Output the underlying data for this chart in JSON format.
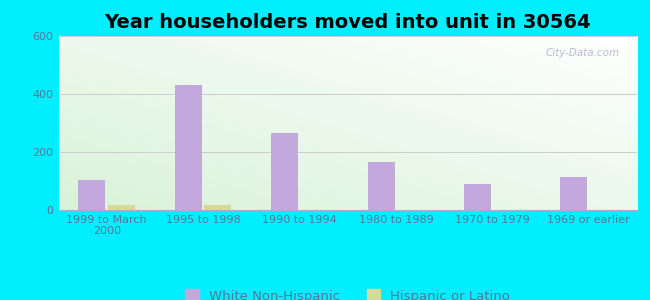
{
  "title": "Year householders moved into unit in 30564",
  "categories": [
    "1999 to March\n2000",
    "1995 to 1998",
    "1990 to 1994",
    "1980 to 1989",
    "1970 to 1979",
    "1969 or earlier"
  ],
  "white_values": [
    105,
    430,
    265,
    165,
    88,
    115
  ],
  "hispanic_values": [
    18,
    18,
    0,
    0,
    0,
    0
  ],
  "white_color": "#c2a8dc",
  "hispanic_color": "#d8d898",
  "background_outer": "#00eeff",
  "ylim": [
    0,
    600
  ],
  "yticks": [
    0,
    200,
    400,
    600
  ],
  "bar_width": 0.28,
  "title_fontsize": 14,
  "tick_fontsize": 8,
  "legend_fontsize": 9.5,
  "tick_color": "#557799",
  "watermark": "City-Data.com"
}
